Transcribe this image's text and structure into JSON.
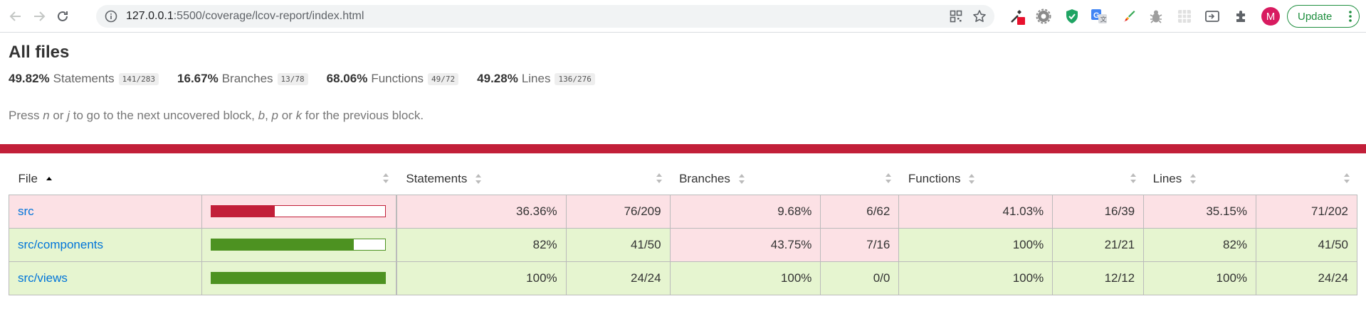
{
  "browser": {
    "url_host": "127.0.0.1",
    "url_path": ":5500/coverage/lcov-report/index.html",
    "avatar_letter": "M",
    "update_label": "Update",
    "icons": [
      "back-arrow-icon",
      "forward-arrow-icon",
      "reload-icon",
      "info-icon",
      "qr-code-icon",
      "star-icon"
    ],
    "extensions": [
      "eyedropper-extension-icon",
      "gear-extension-icon",
      "shield-extension-icon",
      "translate-extension-icon",
      "brush-extension-icon",
      "bug-extension-icon",
      "grid-extension-icon",
      "tab-extension-icon",
      "puzzle-icon"
    ]
  },
  "report": {
    "title": "All files",
    "summary": [
      {
        "pct": "49.82%",
        "label": "Statements",
        "frac": "141/283"
      },
      {
        "pct": "16.67%",
        "label": "Branches",
        "frac": "13/78"
      },
      {
        "pct": "68.06%",
        "label": "Functions",
        "frac": "49/72"
      },
      {
        "pct": "49.28%",
        "label": "Lines",
        "frac": "136/276"
      }
    ],
    "hint": {
      "p1": "Press ",
      "k1": "n",
      "p2": " or ",
      "k2": "j",
      "p3": " to go to the next uncovered block, ",
      "k3": "b",
      "p4": ", ",
      "k4": "p",
      "p5": " or ",
      "k5": "k",
      "p6": " for the previous block."
    },
    "status_color": "#c21f39",
    "table": {
      "headers": {
        "file": "File",
        "statements": "Statements",
        "branches": "Branches",
        "functions": "Functions",
        "lines": "Lines"
      },
      "rows": [
        {
          "file": "src",
          "coverage": 0.3636,
          "level": "low",
          "statements_pct": "36.36%",
          "statements_frac": "76/209",
          "branches_pct": "9.68%",
          "branches_frac": "6/62",
          "functions_pct": "41.03%",
          "functions_frac": "16/39",
          "lines_pct": "35.15%",
          "lines_frac": "71/202"
        },
        {
          "file": "src/components",
          "coverage": 0.82,
          "level": "high",
          "statements_pct": "82%",
          "statements_frac": "41/50",
          "branches_pct": "43.75%",
          "branches_frac": "7/16",
          "functions_pct": "100%",
          "functions_frac": "21/21",
          "lines_pct": "82%",
          "lines_frac": "41/50"
        },
        {
          "file": "src/views",
          "coverage": 1.0,
          "level": "high",
          "statements_pct": "100%",
          "statements_frac": "24/24",
          "branches_pct": "100%",
          "branches_frac": "0/0",
          "functions_pct": "100%",
          "functions_frac": "12/12",
          "lines_pct": "100%",
          "lines_frac": "24/24"
        }
      ]
    }
  }
}
